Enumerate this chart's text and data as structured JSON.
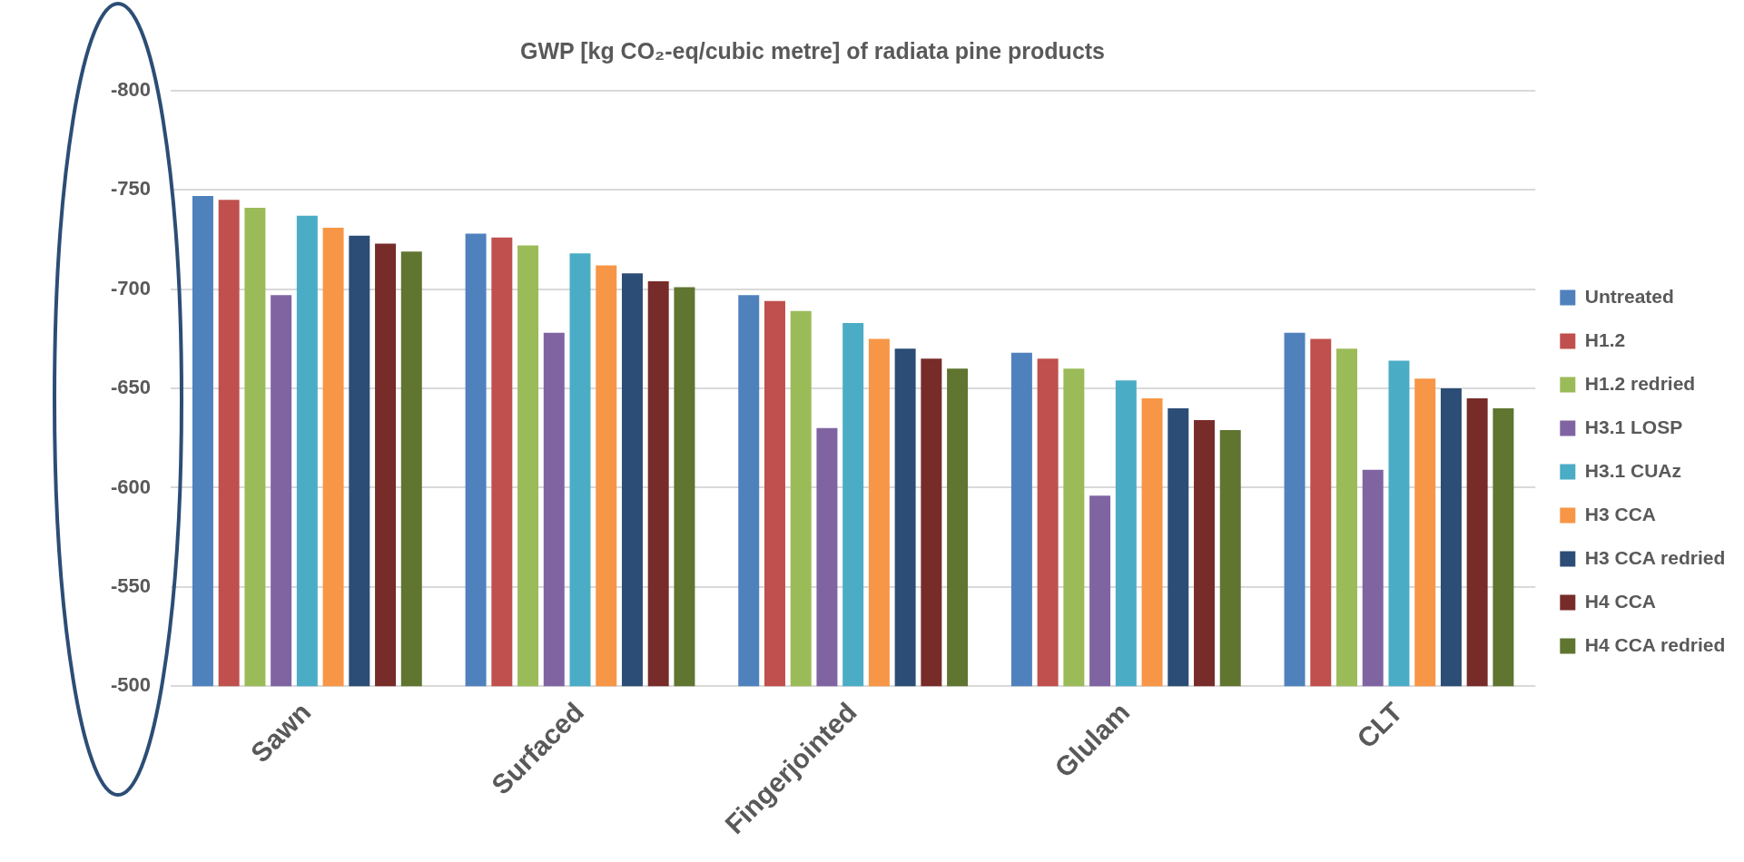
{
  "chart_data": {
    "type": "bar",
    "title": "GWP [kg CO₂-eq/cubic metre] of radiata pine products",
    "categories": [
      "Sawn",
      "Surfaced",
      "Fingerjointed",
      "Glulam",
      "CLT"
    ],
    "series": [
      {
        "name": "Untreated",
        "color": "#4f81bd",
        "values": [
          -747,
          -728,
          -697,
          -668,
          -678
        ]
      },
      {
        "name": "H1.2",
        "color": "#c0504d",
        "values": [
          -745,
          -726,
          -694,
          -665,
          -675
        ]
      },
      {
        "name": "H1.2 redried",
        "color": "#9bbb59",
        "values": [
          -741,
          -722,
          -689,
          -660,
          -670
        ]
      },
      {
        "name": "H3.1 LOSP",
        "color": "#8064a2",
        "values": [
          -697,
          -678,
          -630,
          -596,
          -609
        ]
      },
      {
        "name": "H3.1 CUAz",
        "color": "#4bacc6",
        "values": [
          -737,
          -718,
          -683,
          -654,
          -664
        ]
      },
      {
        "name": "H3 CCA",
        "color": "#f79646",
        "values": [
          -731,
          -712,
          -675,
          -645,
          -655
        ]
      },
      {
        "name": "H3 CCA redried",
        "color": "#2c4d75",
        "values": [
          -727,
          -708,
          -670,
          -640,
          -650
        ]
      },
      {
        "name": "H4 CCA",
        "color": "#772c2a",
        "values": [
          -723,
          -704,
          -665,
          -634,
          -645
        ]
      },
      {
        "name": "H4 CCA redried",
        "color": "#5f7530",
        "values": [
          -719,
          -701,
          -660,
          -629,
          -640
        ]
      }
    ],
    "ylim": [
      -500,
      -800
    ],
    "yticks": [
      -500,
      -550,
      -600,
      -650,
      -700,
      -750,
      -800
    ],
    "grid": "y",
    "legend": "right"
  }
}
